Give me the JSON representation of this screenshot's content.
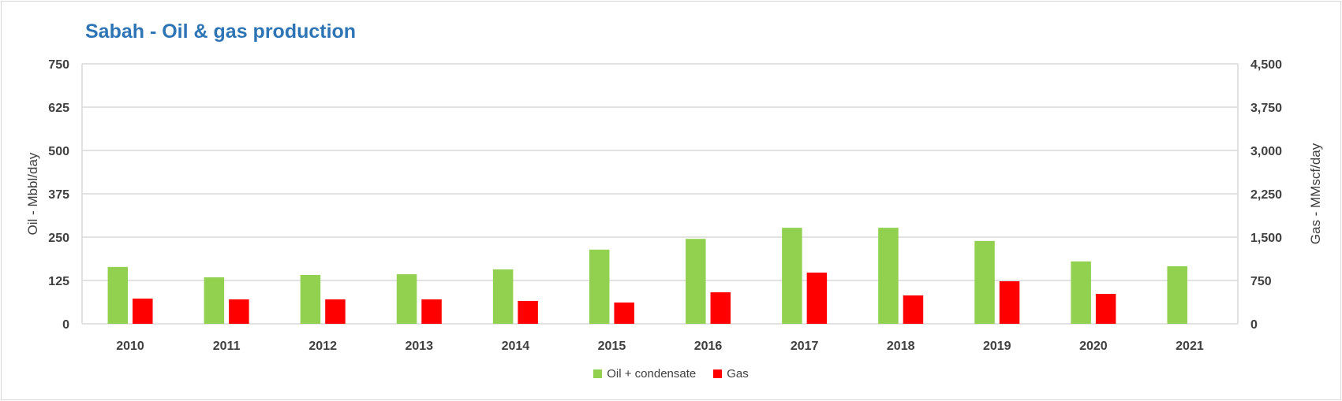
{
  "chart_data": {
    "type": "bar",
    "title": "Sabah - Oil & gas production",
    "categories": [
      "2010",
      "2011",
      "2012",
      "2013",
      "2014",
      "2015",
      "2016",
      "2017",
      "2018",
      "2019",
      "2020",
      "2021"
    ],
    "series": [
      {
        "name": "Oil + condensate",
        "axis": "left",
        "color": "#92D050",
        "values": [
          164,
          134,
          141,
          143,
          157,
          214,
          245,
          277,
          277,
          239,
          180,
          166
        ]
      },
      {
        "name": "Gas",
        "axis": "right",
        "color": "#FF0000",
        "values": [
          436,
          422,
          422,
          422,
          396,
          368,
          545,
          886,
          491,
          736,
          518,
          null
        ]
      }
    ],
    "ylabel": "Oil - Mbbl/day",
    "y2label": "Gas - MMscf/day",
    "ylim": [
      0,
      750
    ],
    "y2lim": [
      0,
      4500
    ],
    "yticks": [
      "0",
      "125",
      "250",
      "375",
      "500",
      "625",
      "750"
    ],
    "y2ticks": [
      "0",
      "750",
      "1,500",
      "2,250",
      "3,000",
      "3,750",
      "4,500"
    ],
    "grid": true,
    "legend": "bottom"
  }
}
